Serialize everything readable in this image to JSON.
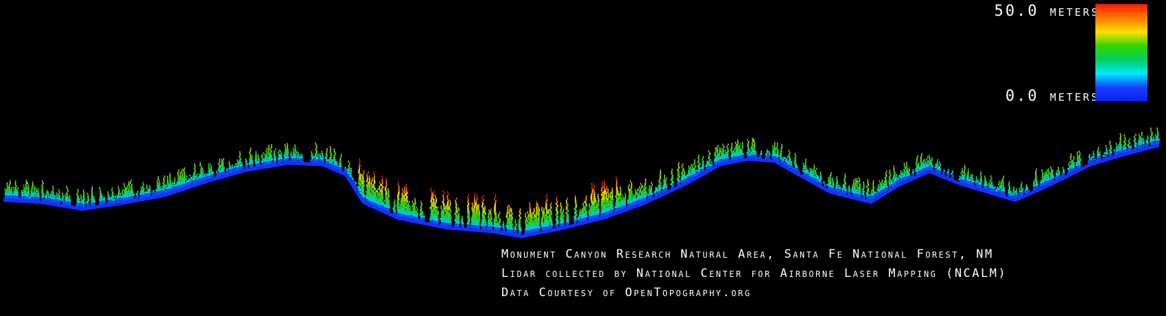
{
  "legend": {
    "max_label": "50.0 meters",
    "min_label": "0.0 meters",
    "max_value_m": 50.0,
    "min_value_m": 0.0,
    "gradient_colors": [
      "#ff1a00",
      "#ff7a00",
      "#ffe000",
      "#32d400",
      "#00d060",
      "#00e8ff",
      "#1a40ff",
      "#0a20e8"
    ]
  },
  "caption": {
    "line1": "Monument Canyon Research Natural Area, Santa Fe National Forest, NM",
    "line2": "Lidar collected by National Center for Airborne Laser Mapping (NCALM)",
    "line3": "Data Courtesy of OpenTopography.org"
  },
  "colors": {
    "background": "#000000",
    "ground": "#1530ff",
    "text": "#ffffff"
  }
}
